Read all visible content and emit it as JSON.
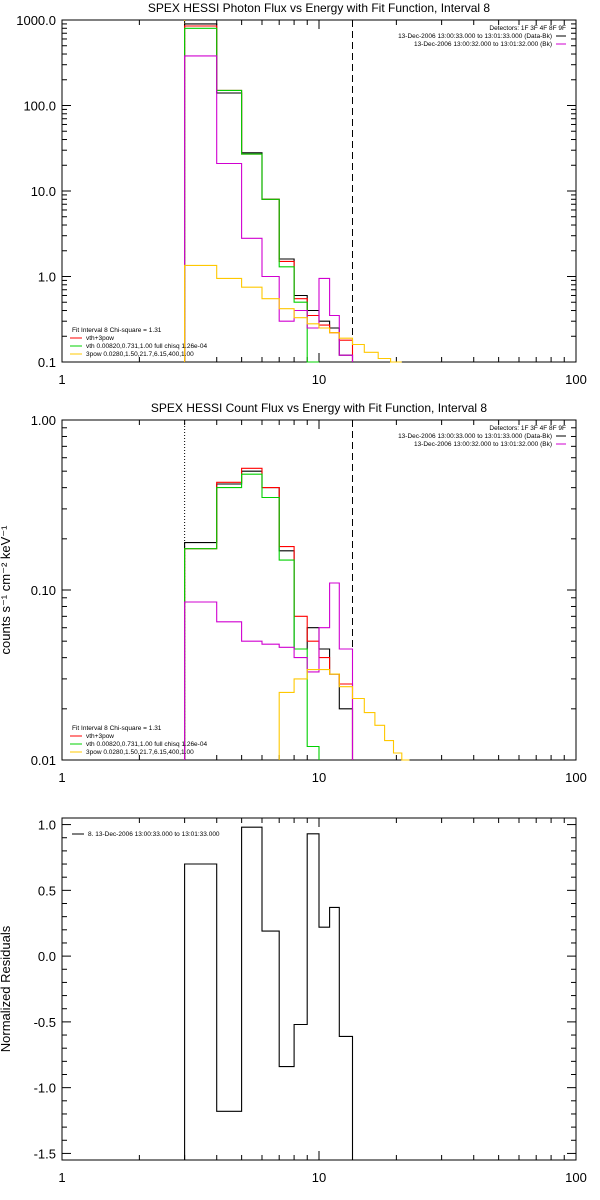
{
  "colors": {
    "black": "#000000",
    "red": "#ff0000",
    "green": "#00d000",
    "magenta": "#d000d0",
    "yellow": "#ffc800"
  },
  "chart_data": [
    {
      "type": "line",
      "title": "SPEX HESSI Photon Flux vs Energy with Fit Function, Interval 8",
      "xscale": "log",
      "yscale": "log",
      "xlim": [
        1,
        100
      ],
      "ylim": [
        0.1,
        1000
      ],
      "xticks": [
        1,
        10,
        100
      ],
      "xticklabels": [
        "1",
        "10",
        "100"
      ],
      "yticks": [
        0.1,
        1,
        10,
        100,
        1000
      ],
      "yticklabels": [
        "0.1",
        "1.0",
        "10.0",
        "100.0",
        "1000.0"
      ],
      "ylabel": "",
      "vlines": [
        {
          "x": 3.0,
          "style": "dotted",
          "color": "#ffc800"
        },
        {
          "x": 13.5,
          "style": "dashed",
          "color": "#000000"
        }
      ],
      "legend_top": [
        "Detectors: 1F 3F 4F 8F 9F",
        "13-Dec-2006 13:00:33.000 to 13:01:33.000 (Data-Bk)",
        "13-Dec-2006 13:00:32.000 to 13:01:32.000 (Bk)"
      ],
      "legend_bottom": [
        "Fit Interval 8    Chi-square = 1.31",
        "vth+3pow",
        "vth 0.00820,0.731,1.00   full chisq 1.26e-04",
        "3pow 0.0280,1.50,21.7,6.15,400,1.00"
      ],
      "edges": [
        3.0,
        4.0,
        5.0,
        6.0,
        7.0,
        8.0,
        9.0,
        10.0,
        11.0,
        12.0,
        13.5,
        15.0,
        17.0,
        19.0,
        21.0
      ],
      "series": [
        {
          "color": "#000000",
          "values": [
            900,
            140,
            28,
            8,
            1.6,
            0.6,
            0.4,
            0.3,
            0.25,
            0.12
          ]
        },
        {
          "color": "#ff0000",
          "values": [
            850,
            150,
            27,
            8,
            1.5,
            0.55,
            0.35,
            0.27,
            0.22,
            0.18
          ]
        },
        {
          "color": "#00d000",
          "values": [
            800,
            150,
            27,
            8,
            1.3,
            0.5,
            0.1
          ]
        },
        {
          "color": "#d000d0",
          "values": [
            380,
            21,
            2.8,
            1.0,
            0.3,
            0.4,
            0.25,
            0.95,
            0.35,
            0.12
          ]
        },
        {
          "color": "#ffc800",
          "values": [
            1.35,
            0.95,
            0.75,
            0.55,
            0.42,
            0.33,
            0.28,
            0.25,
            0.22,
            0.19,
            0.16,
            0.13,
            0.11,
            0.1
          ]
        }
      ]
    },
    {
      "type": "line",
      "title": "SPEX HESSI Count Flux vs Energy with Fit Function, Interval 8",
      "xscale": "log",
      "yscale": "log",
      "xlim": [
        1,
        100
      ],
      "ylim": [
        0.01,
        1
      ],
      "xticks": [
        1,
        10,
        100
      ],
      "xticklabels": [
        "1",
        "10",
        "100"
      ],
      "yticks": [
        0.01,
        0.1,
        1
      ],
      "yticklabels": [
        "0.01",
        "0.10",
        "1.00"
      ],
      "ylabel": "counts s⁻¹ cm⁻² keV⁻¹",
      "vlines": [
        {
          "x": 3.0,
          "style": "dotted",
          "color": "#000000"
        },
        {
          "x": 13.5,
          "style": "dashed",
          "color": "#000000"
        }
      ],
      "legend_top": [
        "Detectors: 1F 3F 4F 8F 9F",
        "13-Dec-2006 13:00:33.000 to 13:01:33.000 (Data-Bk)",
        "13-Dec-2006 13:00:32.000 to 13:01:32.000 (Bk)"
      ],
      "legend_bottom": [
        "Fit Interval 8    Chi-square = 1.31",
        "vth+3pow",
        "vth 0.00820,0.731,1.00   full chisq 1.26e-04",
        "3pow 0.0280,1.50,21.7,6.15,400,1.00"
      ],
      "edges": [
        3.0,
        4.0,
        5.0,
        6.0,
        7.0,
        8.0,
        9.0,
        10.0,
        11.0,
        12.0,
        13.5,
        15.0,
        16.5,
        18.0,
        19.5,
        21.0,
        22.5
      ],
      "series": [
        {
          "color": "#000000",
          "values": [
            0.19,
            0.42,
            0.5,
            0.4,
            0.17,
            0.045,
            0.06,
            0.045,
            0.032,
            0.02
          ]
        },
        {
          "color": "#ff0000",
          "values": [
            0.175,
            0.43,
            0.52,
            0.4,
            0.18,
            0.07,
            0.05,
            0.04,
            0.032,
            0.028
          ]
        },
        {
          "color": "#00d000",
          "values": [
            0.175,
            0.4,
            0.48,
            0.35,
            0.15,
            0.045,
            0.012
          ]
        },
        {
          "color": "#d000d0",
          "values": [
            0.085,
            0.065,
            0.05,
            0.048,
            0.046,
            0.04,
            0.033,
            0.06,
            0.11,
            0.045
          ]
        },
        {
          "color": "#ffc800",
          "values": [
            null,
            null,
            null,
            null,
            0.025,
            0.03,
            0.034,
            0.034,
            0.032,
            0.027,
            0.023,
            0.019,
            0.016,
            0.013,
            0.011,
            0.01
          ]
        }
      ]
    },
    {
      "type": "line",
      "title": "",
      "xscale": "log",
      "yscale": "linear",
      "xlim": [
        1,
        100
      ],
      "ylim": [
        -1.55,
        1.05
      ],
      "xticks": [
        1,
        10,
        100
      ],
      "xticklabels": [
        "1",
        "10",
        "100"
      ],
      "yticks": [
        -1.5,
        -1.0,
        -0.5,
        0.0,
        0.5,
        1.0
      ],
      "yticklabels": [
        "-1.5",
        "-1.0",
        "-0.5",
        "0.0",
        "0.5",
        "1.0"
      ],
      "ylabel": "Normalized Residuals",
      "vlines": [],
      "legend_top": [],
      "legend_bottom": [],
      "legend_resid": "8. 13-Dec-2006 13:00:33.000 to 13:01:33.000",
      "edges": [
        3.0,
        4.0,
        5.0,
        6.0,
        7.0,
        8.0,
        9.0,
        10.0,
        11.0,
        12.0,
        13.5
      ],
      "series": [
        {
          "color": "#000000",
          "values": [
            0.7,
            -1.18,
            0.98,
            0.19,
            -0.84,
            -0.52,
            0.93,
            0.22,
            0.37,
            -0.61
          ]
        }
      ]
    }
  ]
}
